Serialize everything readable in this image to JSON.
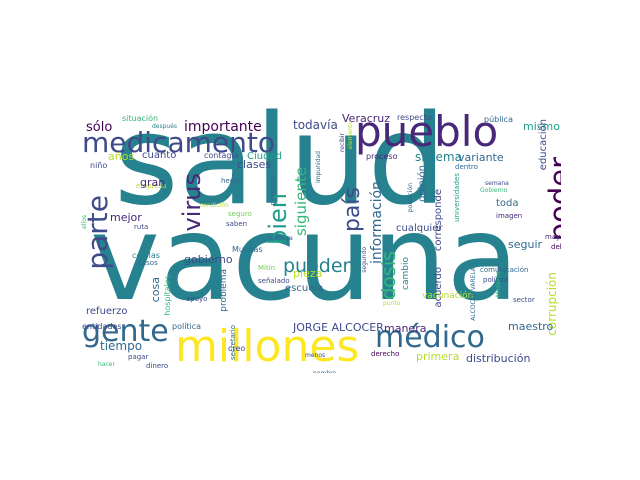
{
  "palette": {
    "dark_purple": "#440154",
    "indigo": "#482878",
    "blue": "#3e4a89",
    "steel_blue": "#31688e",
    "teal": "#26828e",
    "green_teal": "#1f9e89",
    "green": "#35b779",
    "light_green": "#6ece58",
    "lime": "#b5de2b",
    "yellow": "#fde725"
  },
  "words": {
    "salud": "salud",
    "vacuna": "vacuna",
    "millones": "millones",
    "pueblo": "pueblo",
    "medicamento": "medicamento",
    "medico": "médico",
    "gente": "gente",
    "poder": "poder",
    "parte": "parte",
    "virus": "virus",
    "pais": "país",
    "bien": "bien",
    "pueden": "pueden",
    "dosis": "dosis",
    "siguiente": "siguiente",
    "informacion": "información",
    "importante": "importante",
    "solo": "sólo",
    "todavia": "todavía",
    "veracruz": "Veracruz",
    "respecto": "respecto",
    "publica": "pública",
    "mismo": "mismo",
    "sistema": "sistema",
    "variante": "variante",
    "proceso": "proceso",
    "educacion": "educación",
    "anos": "años",
    "cuanto": "cuanto",
    "contagio": "contagio",
    "ciudad": "Ciudad",
    "situacion": "situación",
    "despues": "después",
    "nino": "niño",
    "empresa": "empresa",
    "gran": "gran",
    "hecho": "hecho",
    "clases": "clases",
    "mejor": "mejor",
    "ruta": "ruta",
    "seguro": "seguro",
    "saben": "saben",
    "muchas": "Muchas",
    "compra": "compra",
    "personal": "personal",
    "impunidad": "impunidad",
    "recibir": "recibir",
    "cualquier": "cualquier",
    "opinion": "opinión",
    "corresponde": "corresponde",
    "poblacion": "población",
    "universidades": "universidades",
    "dentro": "dentro",
    "semana": "semana",
    "gobierno": "gobierno",
    "toda": "toda",
    "imagen": "imagen",
    "mayor": "mayor",
    "debe": "debe",
    "siempre": "siempre",
    "celulas": "células",
    "casos": "casos",
    "gobierno2": "gobierno",
    "cosa": "cosa",
    "hospitales": "hospitales",
    "problema": "problema",
    "pieza": "pieza",
    "escuela": "escuela",
    "mitin": "Mitin",
    "senalado": "señalado",
    "seguir": "seguir",
    "acuerdo": "acuerdo",
    "cambio": "cambio",
    "vacunacion": "vacunación",
    "alcocer_varela": "ALCOCER VARELA",
    "punto": "punto",
    "comunicacion": "comunicación",
    "politica": "política",
    "sector": "sector",
    "corrupcion": "corrupción",
    "refuerzo": "refuerzo",
    "entidades": "entidades",
    "politica2": "política",
    "apoyo": "apoyo",
    "jorge_alcocer": "JORGE ALCOCER",
    "manera": "manera",
    "maestro": "maestro",
    "tiempo": "tiempo",
    "pagar": "pagar",
    "dinero": "dinero",
    "secretario": "secretario",
    "creo": "creo",
    "nombre": "nombre",
    "menos": "menos",
    "segundo": "segundo",
    "derecho": "derecho",
    "primera": "primera",
    "distribucion": "distribución",
    "hacer": "hacer",
    "elemento": "elemento",
    "gobierno3": "Gobierno",
    "condicion": "condición",
    "apoyo2": "ellos",
    "moderna": "Moderna"
  }
}
